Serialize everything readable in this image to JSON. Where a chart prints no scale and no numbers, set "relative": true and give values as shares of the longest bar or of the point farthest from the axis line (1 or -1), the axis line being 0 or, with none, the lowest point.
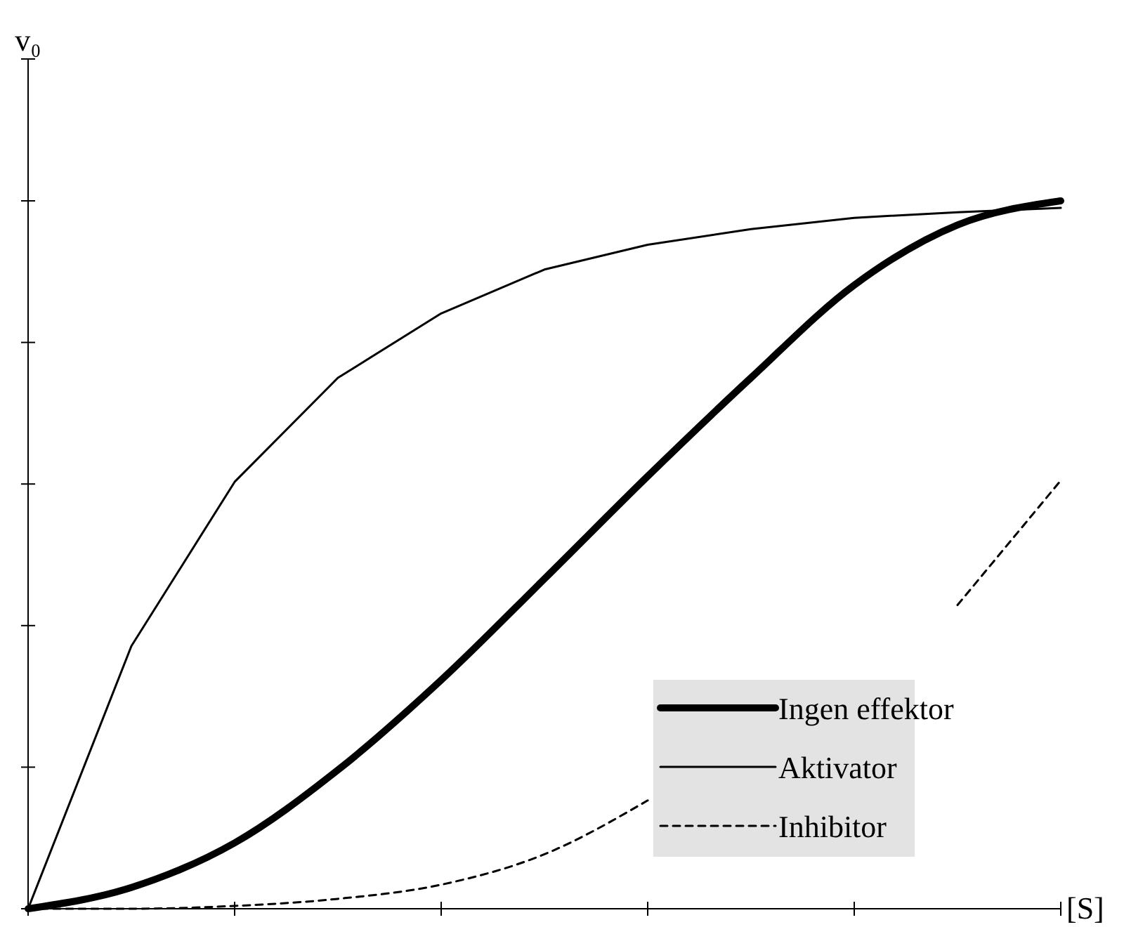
{
  "chart_data": {
    "type": "line",
    "relative": true,
    "xlabel": "[S]",
    "ylabel": "v₀",
    "categories": [
      null,
      null,
      null,
      null,
      null,
      null,
      null,
      null,
      null,
      null,
      null
    ],
    "legend": "bottom right",
    "series": [
      {
        "name": "Ingen effektor",
        "color": "#000000",
        "line_style": "solid",
        "values": [
          0,
          0.03,
          0.093,
          0.196,
          0.323,
          0.466,
          0.611,
          0.75,
          0.881,
          0.966,
          1
        ]
      },
      {
        "name": "Aktivator",
        "color": "#000000",
        "line_style": "solid",
        "values": [
          0,
          0.371,
          0.603,
          0.75,
          0.841,
          0.903,
          0.938,
          0.96,
          0.976,
          0.984,
          0.99
        ]
      },
      {
        "name": "Inhibitor",
        "color": "#000000",
        "line_style": "dashed",
        "values": [
          0,
          0,
          0.004,
          0.014,
          0.034,
          0.077,
          0.153,
          null,
          null,
          0.429,
          0.605
        ]
      }
    ]
  }
}
